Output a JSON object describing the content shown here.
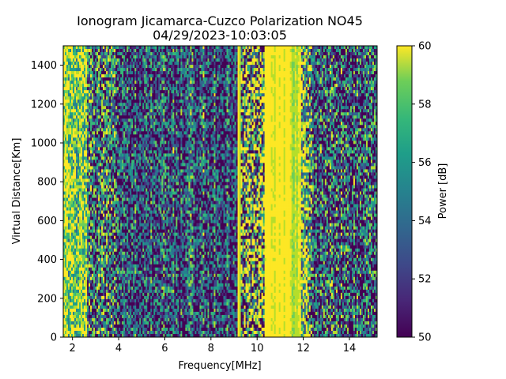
{
  "chart_data": {
    "type": "heatmap",
    "title": "Ionogram Jicamarca-Cuzco Polarization NO45",
    "subtitle": "04/29/2023-10:03:05",
    "xlabel": "Frequency[MHz]",
    "ylabel": "Virtual Distance[Km]",
    "xlim": [
      1.6,
      15.2
    ],
    "ylim": [
      0,
      1500
    ],
    "xticks": [
      2,
      4,
      6,
      8,
      10,
      12,
      14
    ],
    "yticks": [
      0,
      200,
      400,
      600,
      800,
      1000,
      1200,
      1400
    ],
    "colorbar": {
      "label": "Power [dB]",
      "range": [
        50,
        60
      ],
      "ticks": [
        50,
        52,
        54,
        56,
        58,
        60
      ],
      "colormap": "viridis"
    },
    "features": [
      {
        "freq_range_mhz": [
          1.6,
          2.6
        ],
        "power_db": "mostly 58-60 (noisy, high)"
      },
      {
        "freq_range_mhz": [
          2.6,
          9.0
        ],
        "power_db": "mostly 50-54 (low) with vertical striping"
      },
      {
        "freq_range_mhz": [
          9.15,
          9.3
        ],
        "power_db": "60 (narrow saturated line)"
      },
      {
        "freq_range_mhz": [
          9.3,
          10.3
        ],
        "power_db": "mixed 50-60"
      },
      {
        "freq_range_mhz": [
          10.3,
          11.9
        ],
        "power_db": "60 (saturated band)"
      },
      {
        "freq_range_mhz": [
          11.9,
          15.2
        ],
        "power_db": "mixed, mostly 50-56"
      }
    ]
  }
}
